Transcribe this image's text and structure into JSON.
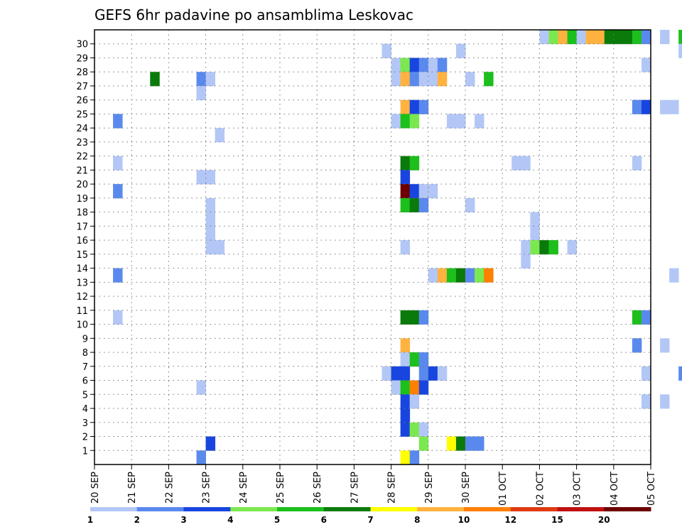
{
  "chart_data": {
    "type": "heatmap",
    "title": "GEFS 6hr padavine po ansamblima Leskovac",
    "x_tick_labels": [
      "20 SEP",
      "21 SEP",
      "22 SEP",
      "23 SEP",
      "24 SEP",
      "25 SEP",
      "26 SEP",
      "27 SEP",
      "28 SEP",
      "29 SEP",
      "30 SEP",
      "01 OCT",
      "02 OCT",
      "03 OCT",
      "04 OCT",
      "05 OCT"
    ],
    "y_tick_labels": [
      "1",
      "2",
      "3",
      "4",
      "5",
      "6",
      "7",
      "8",
      "9",
      "10",
      "11",
      "12",
      "13",
      "14",
      "15",
      "16",
      "17",
      "18",
      "19",
      "20",
      "21",
      "22",
      "23",
      "24",
      "25",
      "26",
      "27",
      "28",
      "29",
      "30"
    ],
    "x_range_days": [
      0,
      15
    ],
    "y_range_members": [
      0,
      30
    ],
    "step_hours": 6,
    "grid": true,
    "colorbar": {
      "labels": [
        "1",
        "2",
        "3",
        "4",
        "5",
        "6",
        "7",
        "8",
        "10",
        "12",
        "15",
        "20"
      ],
      "colors": [
        "#b3c7f7",
        "#5a89ee",
        "#1845e0",
        "#7be84f",
        "#1cbf1c",
        "#0a7a0a",
        "#ffff00",
        "#ffb23f",
        "#ff7f00",
        "#e03a10",
        "#c01010",
        "#6e0000"
      ]
    },
    "cells": [
      [
        30,
        48,
        0
      ],
      [
        30,
        49,
        3
      ],
      [
        30,
        50,
        7
      ],
      [
        30,
        51,
        4
      ],
      [
        30,
        52,
        0
      ],
      [
        30,
        53,
        7
      ],
      [
        30,
        54,
        7
      ],
      [
        30,
        55,
        5
      ],
      [
        30,
        56,
        5
      ],
      [
        30,
        57,
        5
      ],
      [
        30,
        58,
        4
      ],
      [
        30,
        59,
        1
      ],
      [
        30,
        61,
        0
      ],
      [
        30,
        63,
        4
      ],
      [
        30,
        66,
        0
      ],
      [
        30,
        67,
        0
      ],
      [
        30,
        70,
        1
      ],
      [
        30,
        71,
        3
      ],
      [
        29,
        31,
        0
      ],
      [
        29,
        39,
        0
      ],
      [
        29,
        63,
        0
      ],
      [
        29,
        68,
        1
      ],
      [
        29,
        69,
        0
      ],
      [
        28,
        32,
        0
      ],
      [
        28,
        33,
        3
      ],
      [
        28,
        34,
        2
      ],
      [
        28,
        35,
        1
      ],
      [
        28,
        36,
        0
      ],
      [
        28,
        37,
        1
      ],
      [
        28,
        59,
        0
      ],
      [
        28,
        78,
        0
      ],
      [
        28,
        83,
        1
      ],
      [
        27,
        6,
        5
      ],
      [
        27,
        11,
        1
      ],
      [
        27,
        12,
        0
      ],
      [
        27,
        32,
        0
      ],
      [
        27,
        33,
        7
      ],
      [
        27,
        34,
        1
      ],
      [
        27,
        35,
        0
      ],
      [
        27,
        36,
        0
      ],
      [
        27,
        37,
        7
      ],
      [
        27,
        40,
        0
      ],
      [
        27,
        42,
        4
      ],
      [
        27,
        65,
        2
      ],
      [
        26,
        11,
        0
      ],
      [
        25,
        33,
        7
      ],
      [
        25,
        34,
        2
      ],
      [
        25,
        35,
        1
      ],
      [
        25,
        58,
        1
      ],
      [
        25,
        59,
        2
      ],
      [
        25,
        61,
        0
      ],
      [
        25,
        62,
        0
      ],
      [
        24,
        2,
        1
      ],
      [
        24,
        32,
        0
      ],
      [
        24,
        33,
        4
      ],
      [
        24,
        34,
        3
      ],
      [
        24,
        38,
        0
      ],
      [
        24,
        39,
        0
      ],
      [
        24,
        41,
        0
      ],
      [
        24,
        82,
        0
      ],
      [
        24,
        86,
        0
      ],
      [
        23,
        13,
        0
      ],
      [
        22,
        79,
        1
      ],
      [
        21,
        2,
        0
      ],
      [
        21,
        33,
        5
      ],
      [
        21,
        34,
        4
      ],
      [
        21,
        45,
        0
      ],
      [
        21,
        46,
        0
      ],
      [
        21,
        58,
        0
      ],
      [
        21,
        66,
        1
      ],
      [
        21,
        71,
        2
      ],
      [
        21,
        72,
        2
      ],
      [
        21,
        74,
        5
      ],
      [
        21,
        75,
        8
      ],
      [
        21,
        76,
        4
      ],
      [
        21,
        82,
        0
      ],
      [
        21,
        84,
        2
      ],
      [
        20,
        11,
        0
      ],
      [
        20,
        12,
        0
      ],
      [
        20,
        33,
        2
      ],
      [
        19,
        2,
        1
      ],
      [
        19,
        33,
        11
      ],
      [
        19,
        34,
        2
      ],
      [
        19,
        35,
        0
      ],
      [
        19,
        36,
        0
      ],
      [
        19,
        73,
        4
      ],
      [
        19,
        74,
        1
      ],
      [
        19,
        76,
        0
      ],
      [
        19,
        87,
        7
      ],
      [
        19,
        88,
        6
      ],
      [
        18,
        12,
        0
      ],
      [
        18,
        33,
        4
      ],
      [
        18,
        34,
        5
      ],
      [
        18,
        35,
        1
      ],
      [
        18,
        40,
        0
      ],
      [
        18,
        82,
        2
      ],
      [
        18,
        83,
        2
      ],
      [
        17,
        12,
        0
      ],
      [
        17,
        47,
        0
      ],
      [
        16,
        12,
        0
      ],
      [
        16,
        47,
        0
      ],
      [
        15,
        12,
        0
      ],
      [
        15,
        13,
        0
      ],
      [
        15,
        33,
        0
      ],
      [
        15,
        46,
        0
      ],
      [
        15,
        47,
        3
      ],
      [
        15,
        48,
        5
      ],
      [
        15,
        49,
        4
      ],
      [
        15,
        51,
        0
      ],
      [
        14,
        46,
        0
      ],
      [
        13,
        2,
        1
      ],
      [
        13,
        36,
        0
      ],
      [
        13,
        37,
        7
      ],
      [
        13,
        38,
        4
      ],
      [
        13,
        39,
        5
      ],
      [
        13,
        40,
        1
      ],
      [
        13,
        41,
        3
      ],
      [
        13,
        42,
        8
      ],
      [
        13,
        62,
        0
      ],
      [
        13,
        66,
        0
      ],
      [
        13,
        69,
        0
      ],
      [
        13,
        73,
        0
      ],
      [
        13,
        74,
        1
      ],
      [
        13,
        80,
        2
      ],
      [
        13,
        81,
        1
      ],
      [
        10,
        2,
        0
      ],
      [
        10,
        33,
        5
      ],
      [
        10,
        34,
        5
      ],
      [
        10,
        35,
        1
      ],
      [
        10,
        58,
        4
      ],
      [
        10,
        59,
        1
      ],
      [
        10,
        80,
        5
      ],
      [
        10,
        84,
        0
      ],
      [
        10,
        85,
        2
      ],
      [
        8,
        33,
        7
      ],
      [
        8,
        58,
        1
      ],
      [
        8,
        61,
        0
      ],
      [
        7,
        33,
        0
      ],
      [
        7,
        34,
        4
      ],
      [
        7,
        35,
        1
      ],
      [
        6,
        31,
        0
      ],
      [
        6,
        32,
        2
      ],
      [
        6,
        33,
        2
      ],
      [
        6,
        35,
        1
      ],
      [
        6,
        36,
        2
      ],
      [
        6,
        37,
        0
      ],
      [
        6,
        59,
        0
      ],
      [
        6,
        63,
        1
      ],
      [
        6,
        66,
        0
      ],
      [
        6,
        67,
        1
      ],
      [
        5,
        11,
        0
      ],
      [
        5,
        32,
        0
      ],
      [
        5,
        33,
        4
      ],
      [
        5,
        34,
        8
      ],
      [
        5,
        35,
        2
      ],
      [
        4,
        33,
        2
      ],
      [
        4,
        34,
        0
      ],
      [
        4,
        59,
        0
      ],
      [
        4,
        61,
        0
      ],
      [
        4,
        69,
        0
      ],
      [
        4,
        70,
        7
      ],
      [
        4,
        71,
        5
      ],
      [
        4,
        72,
        7
      ],
      [
        4,
        73,
        3
      ],
      [
        4,
        74,
        1
      ],
      [
        4,
        75,
        6
      ],
      [
        4,
        76,
        1
      ],
      [
        4,
        77,
        0
      ],
      [
        4,
        78,
        0
      ],
      [
        4,
        86,
        0
      ],
      [
        3,
        33,
        2
      ],
      [
        3,
        70,
        0
      ],
      [
        2,
        33,
        2
      ],
      [
        2,
        34,
        3
      ],
      [
        2,
        35,
        0
      ],
      [
        1,
        12,
        2
      ],
      [
        1,
        35,
        3
      ],
      [
        1,
        38,
        6
      ],
      [
        1,
        39,
        5
      ],
      [
        1,
        40,
        1
      ],
      [
        1,
        41,
        1
      ],
      [
        1,
        70,
        0
      ],
      [
        1,
        73,
        0
      ],
      [
        0,
        11,
        1
      ],
      [
        0,
        33,
        6
      ],
      [
        0,
        34,
        1
      ],
      [
        0,
        78,
        3
      ],
      [
        0,
        79,
        3
      ]
    ]
  }
}
